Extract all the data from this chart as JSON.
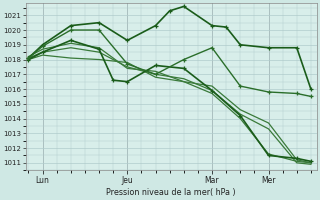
{
  "background_color": "#cfe8e4",
  "plot_bg_color": "#d8eeea",
  "grid_color": "#b0cccc",
  "ylabel": "Pression niveau de la mer( hPa )",
  "ylim": [
    1010.5,
    1021.8
  ],
  "yticks": [
    1011,
    1012,
    1013,
    1014,
    1015,
    1016,
    1017,
    1018,
    1019,
    1020,
    1021
  ],
  "xtick_labels": [
    "Lun",
    "Jeu",
    "Mar",
    "Mer"
  ],
  "xtick_positions": [
    0.5,
    3.5,
    6.5,
    8.5
  ],
  "xlim": [
    -0.1,
    10.2
  ],
  "series": [
    {
      "x": [
        0,
        0.5,
        1.5,
        2.5,
        3.5,
        4.5,
        5.5,
        6.5,
        7.5,
        8.5,
        9.5,
        10.0
      ],
      "y": [
        1018.0,
        1018.3,
        1018.1,
        1018.0,
        1017.8,
        1016.8,
        1016.5,
        1016.2,
        1014.6,
        1013.7,
        1011.2,
        1011.0
      ],
      "color": "#3a7a3a",
      "lw": 0.9,
      "marker": null
    },
    {
      "x": [
        0,
        0.5,
        1.5,
        2.5,
        3.5,
        4.5,
        5.5,
        6.5,
        7.5,
        8.5,
        9.5,
        10.0
      ],
      "y": [
        1018.1,
        1018.5,
        1018.8,
        1018.5,
        1017.5,
        1017.0,
        1016.7,
        1015.9,
        1014.3,
        1013.3,
        1011.0,
        1010.9
      ],
      "color": "#3a7a3a",
      "lw": 0.9,
      "marker": null
    },
    {
      "x": [
        0,
        0.5,
        1.5,
        2.5,
        3.5,
        4.5,
        5.5,
        6.5,
        7.5,
        8.5,
        9.5,
        10.0
      ],
      "y": [
        1018.2,
        1018.7,
        1019.1,
        1018.8,
        1017.4,
        1017.2,
        1016.5,
        1015.7,
        1014.0,
        1011.6,
        1011.1,
        1011.0
      ],
      "color": "#3a7a3a",
      "lw": 0.9,
      "marker": null
    },
    {
      "x": [
        0,
        0.5,
        1.5,
        2.5,
        3.5,
        4.5,
        5.0,
        5.5,
        6.5,
        7.0,
        7.5,
        8.5,
        9.5,
        10.0
      ],
      "y": [
        1018.1,
        1019.0,
        1020.3,
        1020.5,
        1019.3,
        1020.3,
        1021.3,
        1021.6,
        1020.3,
        1020.2,
        1019.0,
        1018.8,
        1018.8,
        1016.0
      ],
      "color": "#1a5c1a",
      "lw": 1.2,
      "marker": "+"
    },
    {
      "x": [
        0,
        0.5,
        1.5,
        2.5,
        3.0,
        3.5,
        4.5,
        5.5,
        6.5,
        7.5,
        8.5,
        9.5,
        10.0
      ],
      "y": [
        1018.0,
        1018.5,
        1019.3,
        1018.7,
        1016.6,
        1016.5,
        1017.6,
        1017.4,
        1015.9,
        1014.2,
        1011.5,
        1011.3,
        1011.1
      ],
      "color": "#1a5c1a",
      "lw": 1.2,
      "marker": "+"
    },
    {
      "x": [
        0,
        0.5,
        1.5,
        2.5,
        3.5,
        4.5,
        5.5,
        6.5,
        7.5,
        8.5,
        9.5,
        10.0
      ],
      "y": [
        1018.1,
        1018.9,
        1020.0,
        1020.0,
        1017.7,
        1017.0,
        1018.0,
        1018.8,
        1016.2,
        1015.8,
        1015.7,
        1015.5
      ],
      "color": "#2a6e2a",
      "lw": 1.0,
      "marker": "+"
    }
  ]
}
